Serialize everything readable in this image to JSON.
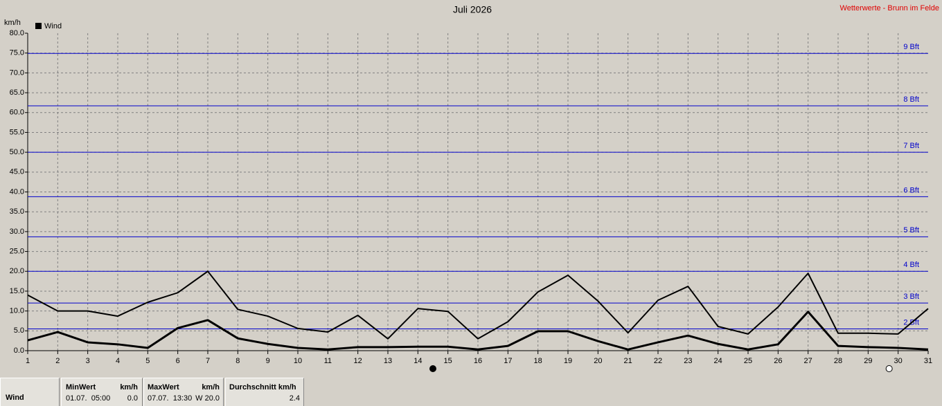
{
  "chart_data": {
    "type": "line",
    "title": "Juli 2026",
    "subtitle": "Wetterwerte - Brunn im Felde",
    "y_label": "km/h",
    "x": [
      1,
      2,
      3,
      4,
      5,
      6,
      7,
      8,
      9,
      10,
      11,
      12,
      13,
      14,
      15,
      16,
      17,
      18,
      19,
      20,
      21,
      22,
      23,
      24,
      25,
      26,
      27,
      28,
      29,
      30,
      31
    ],
    "xlim": [
      1,
      31
    ],
    "xticks": [
      1,
      2,
      3,
      4,
      5,
      6,
      7,
      8,
      9,
      10,
      11,
      12,
      13,
      14,
      15,
      16,
      17,
      18,
      19,
      20,
      21,
      22,
      23,
      24,
      25,
      26,
      27,
      28,
      29,
      30,
      31
    ],
    "ylim": [
      0,
      80
    ],
    "yticks": [
      {
        "value": 0,
        "label": "0.0"
      },
      {
        "value": 5,
        "label": "5.0"
      },
      {
        "value": 10,
        "label": "10.0"
      },
      {
        "value": 15,
        "label": "15.0"
      },
      {
        "value": 20,
        "label": "20.0"
      },
      {
        "value": 25,
        "label": "25.0"
      },
      {
        "value": 30,
        "label": "30.0"
      },
      {
        "value": 35,
        "label": "35.0"
      },
      {
        "value": 40,
        "label": "40.0"
      },
      {
        "value": 45,
        "label": "45.0"
      },
      {
        "value": 50,
        "label": "50.0"
      },
      {
        "value": 55,
        "label": "55.0"
      },
      {
        "value": 60,
        "label": "60.0"
      },
      {
        "value": 65,
        "label": "65.0"
      },
      {
        "value": 70,
        "label": "70.0"
      },
      {
        "value": 75,
        "label": "75.0"
      },
      {
        "value": 80,
        "label": "80.0"
      }
    ],
    "grid": true,
    "series": [
      {
        "name": "Wind",
        "color": "#000000",
        "values": [
          14.0,
          10.0,
          10.0,
          8.7,
          12.2,
          14.6,
          20.0,
          10.4,
          8.7,
          5.6,
          4.7,
          8.9,
          3.0,
          10.6,
          9.9,
          3.0,
          7.3,
          14.8,
          19.0,
          12.5,
          4.5,
          12.7,
          16.2,
          6.1,
          4.2,
          11.0,
          19.5,
          4.4,
          4.4,
          4.2,
          10.6
        ]
      },
      {
        "color": "#000000",
        "values": [
          2.6,
          4.7,
          2.1,
          1.6,
          0.7,
          5.7,
          7.7,
          3.1,
          1.7,
          0.7,
          0.3,
          0.9,
          0.9,
          1.0,
          1.0,
          0.3,
          1.2,
          4.9,
          4.9,
          2.4,
          0.3,
          2.1,
          3.8,
          1.7,
          0.3,
          1.6,
          9.8,
          1.2,
          0.9,
          0.7,
          0.3
        ]
      }
    ],
    "reference_lines": [
      {
        "value": 5.5,
        "label": "2 Bft"
      },
      {
        "value": 12,
        "label": "3 Bft"
      },
      {
        "value": 20,
        "label": "4 Bft"
      },
      {
        "value": 28.7,
        "label": "5 Bft"
      },
      {
        "value": 38.8,
        "label": "6 Bft"
      },
      {
        "value": 50,
        "label": "7 Bft"
      },
      {
        "value": 61.7,
        "label": "8 Bft"
      },
      {
        "value": 74.9,
        "label": "9 Bft"
      }
    ],
    "reference_color": "#0000cc",
    "moon_phases": [
      {
        "x": 14.5,
        "filled": true
      },
      {
        "x": 29.7,
        "filled": false
      }
    ]
  },
  "summary": {
    "header": [
      "Wind",
      "MinWert",
      "km/h",
      "MaxWert",
      "km/h",
      "Durchschnitt km/h"
    ],
    "row": [
      "01.07.  05:00",
      "0.0",
      "07.07.  13:30",
      "W 20.0",
      "2.4"
    ]
  }
}
